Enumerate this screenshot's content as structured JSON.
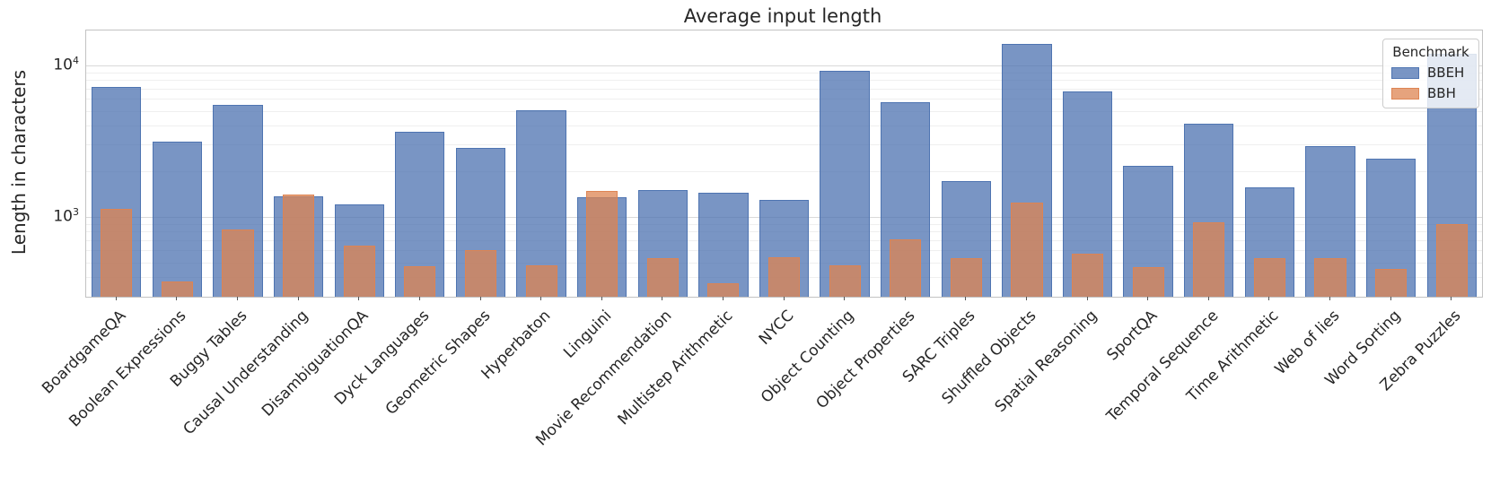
{
  "figure": {
    "title": "Average input length",
    "ylabel": "Length in characters"
  },
  "chart_data": {
    "type": "bar",
    "title": "Average input length",
    "xlabel": "",
    "ylabel": "Length in characters",
    "yscale": "log",
    "ylim": [
      297,
      17000
    ],
    "grid": true,
    "legend_position": "upper right",
    "legend_title": "Benchmark",
    "yticks": [
      {
        "value": 10000,
        "base": "10",
        "exp": "4"
      },
      {
        "value": 1000,
        "base": "10",
        "exp": "3"
      }
    ],
    "major_gridlines": [
      1000,
      10000
    ],
    "minor_gridlines": [
      400,
      500,
      600,
      700,
      800,
      900,
      2000,
      3000,
      4000,
      5000,
      6000,
      7000,
      8000,
      9000
    ],
    "categories": [
      "BoardgameQA",
      "Boolean Expressions",
      "Buggy Tables",
      "Causal Understanding",
      "DisambiguationQA",
      "Dyck Languages",
      "Geometric Shapes",
      "Hyperbaton",
      "Linguini",
      "Movie Recommendation",
      "Multistep Arithmetic",
      "NYCC",
      "Object Counting",
      "Object Properties",
      "SARC Triples",
      "Shuffled Objects",
      "Spatial Reasoning",
      "SportQA",
      "Temporal Sequence",
      "Time Arithmetic",
      "Web of lies",
      "Word Sorting",
      "Zebra Puzzles"
    ],
    "series": [
      {
        "name": "BBEH",
        "color": "#4c72b0",
        "fill_alpha": 0.75,
        "width_ratio": 0.82,
        "values": [
          7200,
          3150,
          5500,
          1370,
          1210,
          3650,
          2860,
          5050,
          1350,
          1500,
          1450,
          1300,
          9200,
          5700,
          1725,
          13900,
          6730,
          2175,
          4125,
          1565,
          2935,
          2430,
          11940
        ]
      },
      {
        "name": "BBH",
        "color": "#dd8452",
        "fill_alpha": 0.75,
        "width_ratio": 0.52,
        "values": [
          1130,
          375,
          830,
          1400,
          650,
          475,
          605,
          480,
          1480,
          535,
          365,
          540,
          480,
          710,
          535,
          1245,
          570,
          465,
          920,
          535,
          535,
          455,
          900
        ]
      }
    ]
  }
}
